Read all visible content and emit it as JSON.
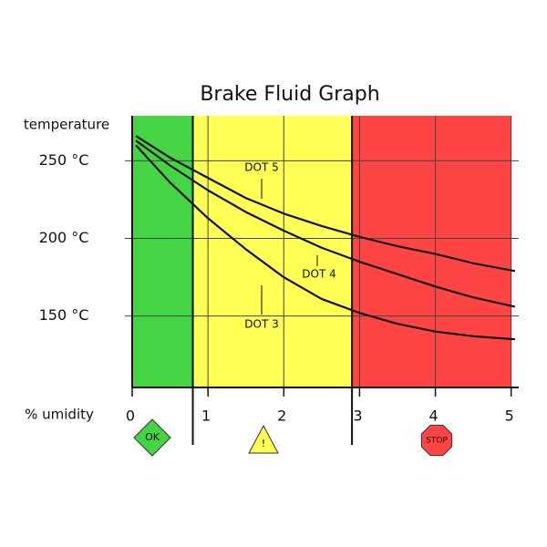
{
  "chart_data": {
    "type": "line",
    "title": "Brake Fluid Graph",
    "y_label": "temperature",
    "x_label": "% umidity",
    "x": [
      0.05,
      0.5,
      1,
      1.5,
      2,
      2.5,
      3,
      3.5,
      4,
      4.5,
      5.05
    ],
    "series": [
      {
        "name": "DOT 5",
        "color": "#111111",
        "values": [
          266,
          252,
          239,
          226,
          216,
          208,
          201,
          195,
          190,
          184,
          179
        ]
      },
      {
        "name": "DOT 4",
        "color": "#111111",
        "values": [
          263,
          247,
          231,
          217,
          205,
          194,
          185,
          177,
          169,
          162,
          156
        ]
      },
      {
        "name": "DOT 3",
        "color": "#111111",
        "values": [
          260,
          236,
          213,
          193,
          175,
          161,
          152,
          145,
          140,
          137,
          135
        ]
      }
    ],
    "zones": [
      {
        "from": 0,
        "to": 0.8,
        "color": "#44d444",
        "label": "OK"
      },
      {
        "from": 0.8,
        "to": 2.9,
        "color": "#ffff55",
        "label": "!"
      },
      {
        "from": 2.9,
        "to": 5,
        "color": "#ff4444",
        "label": "STOP"
      }
    ],
    "xlim": [
      0,
      5.1
    ],
    "ylim": [
      104,
      279
    ],
    "xticks": [
      0,
      1,
      2,
      3,
      4,
      5
    ],
    "yticks": [
      {
        "value": 150,
        "label": "150 °C"
      },
      {
        "value": 200,
        "label": "200 °C"
      },
      {
        "value": 250,
        "label": "250 °C"
      }
    ],
    "grid": true
  }
}
